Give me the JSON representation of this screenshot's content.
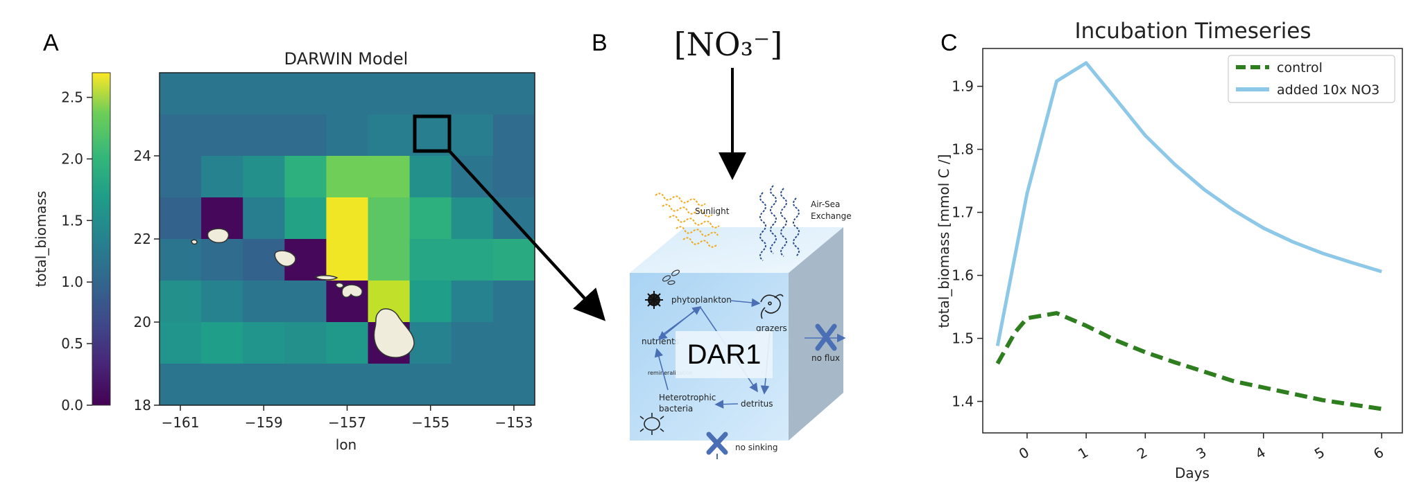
{
  "panels": {
    "a": {
      "letter": "A",
      "title": "DARWIN Model",
      "colorbar_label": "total_biomass",
      "colorbar_ticks": [
        "0.0",
        "0.5",
        "1.0",
        "1.5",
        "2.0",
        "2.5"
      ],
      "y_ticks": [
        "18",
        "20",
        "22",
        "24"
      ],
      "x_ticks": [
        "−161",
        "−159",
        "−157",
        "−155",
        "−153"
      ],
      "x_label": "lon"
    },
    "b": {
      "letter": "B",
      "forcing": "[NO₃⁻]",
      "sunlight": "Sunlight",
      "airsea_line1": "Air-Sea",
      "airsea_line2": "Exchange",
      "phytoplankton": "phytoplankton",
      "grazers": "grazers",
      "nutrients": "nutrients",
      "model": "DAR1",
      "remineralization": "remineralization",
      "hetero_line1": "Heterotrophic",
      "hetero_line2": "bacteria",
      "detritus": "detritus",
      "no_flux": "no flux",
      "no_sinking": "no sinking"
    },
    "c": {
      "letter": "C"
    }
  },
  "chart_data": [
    {
      "type": "heatmap",
      "title": "DARWIN Model",
      "xlabel": "lon",
      "ylabel": "",
      "xlim": [
        -161.5,
        -152.5
      ],
      "ylim": [
        18,
        26
      ],
      "colorbar": {
        "label": "total_biomass",
        "range": [
          0,
          2.7
        ],
        "colormap": "viridis"
      },
      "lon_centers": [
        -161,
        -160,
        -159,
        -158,
        -157,
        -156,
        -155,
        -154,
        -153
      ],
      "lat_centers": [
        25.5,
        24.5,
        23.5,
        22.5,
        21.5,
        20.5,
        19.5,
        18.5
      ],
      "values": [
        [
          1.05,
          1.05,
          1.05,
          1.05,
          1.05,
          1.05,
          1.05,
          1.05,
          1.05
        ],
        [
          0.95,
          0.95,
          0.95,
          0.95,
          1.05,
          1.15,
          1.15,
          1.15,
          0.95
        ],
        [
          0.95,
          1.2,
          1.35,
          1.7,
          2.1,
          2.1,
          1.35,
          1.05,
          0.95
        ],
        [
          0.85,
          0.05,
          1.15,
          1.55,
          2.65,
          2.0,
          1.7,
          1.35,
          1.05
        ],
        [
          1.05,
          0.95,
          0.85,
          0.05,
          2.65,
          2.0,
          1.6,
          1.6,
          1.65
        ],
        [
          1.35,
          1.2,
          1.05,
          1.05,
          0.05,
          2.45,
          1.5,
          1.2,
          1.05
        ],
        [
          1.4,
          1.5,
          1.4,
          1.35,
          1.45,
          0.05,
          1.2,
          1.05,
          1.05
        ],
        [
          1.05,
          1.05,
          1.05,
          1.05,
          1.05,
          1.05,
          1.05,
          1.05,
          1.05
        ]
      ]
    },
    {
      "type": "line",
      "title": "Incubation Timeseries",
      "xlabel": "Days",
      "ylabel": "total_biomass [mmol C /]",
      "xlim": [
        -0.75,
        6.35
      ],
      "ylim": [
        1.35,
        1.96
      ],
      "x_ticks": [
        "0",
        "1",
        "2",
        "3",
        "4",
        "5",
        "6"
      ],
      "y_ticks": [
        "1.4",
        "1.5",
        "1.6",
        "1.7",
        "1.8",
        "1.9"
      ],
      "legend_position": "top-right",
      "series": [
        {
          "name": "control",
          "color": "#2e7d1e",
          "style": "dashed",
          "x": [
            -0.5,
            -0.2,
            0,
            0.5,
            1,
            1.5,
            2,
            2.5,
            3,
            3.5,
            4,
            4.5,
            5,
            5.5,
            6
          ],
          "y": [
            1.46,
            1.51,
            1.532,
            1.54,
            1.52,
            1.497,
            1.478,
            1.462,
            1.447,
            1.432,
            1.422,
            1.412,
            1.402,
            1.395,
            1.388
          ]
        },
        {
          "name": "added 10x NO3",
          "color": "#8ec8e8",
          "style": "solid",
          "x": [
            -0.5,
            0,
            0.5,
            1,
            1.5,
            2,
            2.5,
            3,
            3.5,
            4,
            4.5,
            5,
            5.5,
            6
          ],
          "y": [
            1.488,
            1.73,
            1.908,
            1.937,
            1.88,
            1.822,
            1.776,
            1.736,
            1.703,
            1.675,
            1.653,
            1.635,
            1.62,
            1.606
          ]
        }
      ]
    }
  ]
}
